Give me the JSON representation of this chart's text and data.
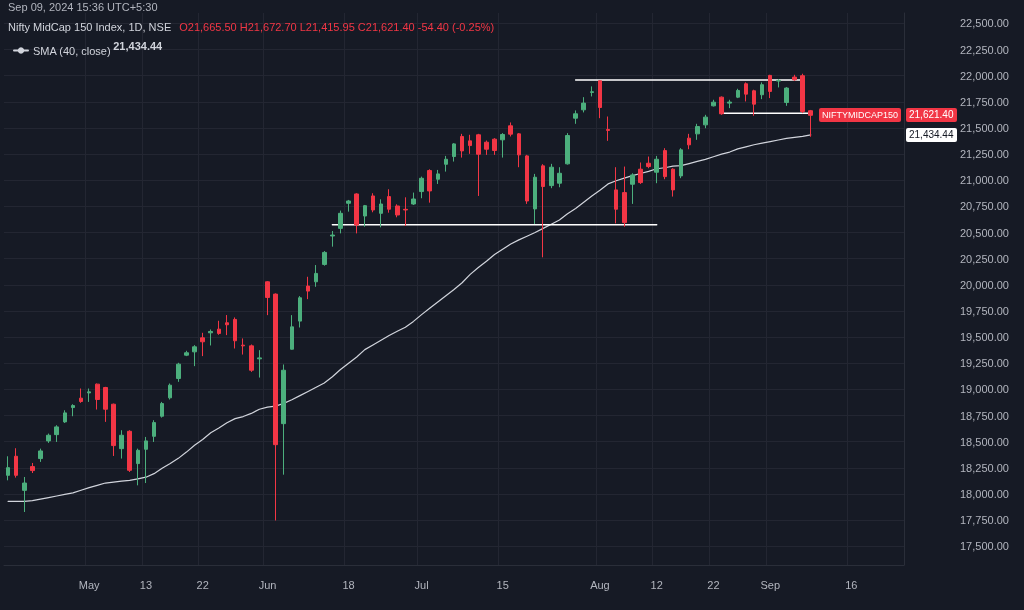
{
  "chart_data": {
    "type": "candlestick",
    "title": "Nifty MidCap 150 Index, 1D, NSE",
    "annotations": [
      "Sep 09, 2024 15:36 UTC+5:30",
      "O21,665.50 H21,672.70 L21,415.95 C21,621.40 -54.40 (-0.25%)",
      "21,434.44",
      "NIFTYMIDCAP150",
      "21,621.40",
      "21,434.44"
    ],
    "categories": [
      null,
      null,
      null,
      null,
      null,
      null,
      null,
      null,
      null,
      null,
      "May",
      null,
      null,
      null,
      null,
      null,
      null,
      "13",
      null,
      null,
      null,
      null,
      null,
      null,
      "22",
      null,
      null,
      null,
      null,
      null,
      null,
      null,
      "Jun",
      null,
      null,
      null,
      null,
      null,
      null,
      null,
      null,
      null,
      "18",
      null,
      null,
      null,
      null,
      null,
      null,
      null,
      null,
      "Jul",
      null,
      null,
      null,
      null,
      null,
      null,
      null,
      null,
      null,
      "15",
      null,
      null,
      null,
      null,
      null,
      null,
      null,
      null,
      null,
      null,
      null,
      "Aug",
      null,
      null,
      null,
      null,
      null,
      null,
      "12",
      null,
      null,
      null,
      null,
      null,
      null,
      "22",
      null,
      null,
      null,
      null,
      null,
      null,
      "Sep",
      null,
      null,
      null,
      null,
      null,
      null,
      null,
      null,
      null,
      "16",
      null,
      null,
      null,
      null,
      null,
      null
    ],
    "ohlc": [
      [
        18178,
        18360,
        18130,
        18251
      ],
      [
        18360,
        18437,
        18156,
        18178
      ],
      [
        18034,
        18162,
        17827,
        18104
      ],
      [
        18261,
        18296,
        18200,
        18223
      ],
      [
        18338,
        18433,
        18306,
        18411
      ],
      [
        18507,
        18577,
        18488,
        18561
      ],
      [
        18567,
        18657,
        18497,
        18641
      ],
      [
        18689,
        18800,
        18679,
        18775
      ],
      [
        18826,
        18858,
        18743,
        18845
      ],
      [
        18916,
        19008,
        18871,
        18884
      ],
      [
        18966,
        19008,
        18880,
        18976
      ],
      [
        19050,
        19056,
        18807,
        18903
      ],
      [
        19018,
        19024,
        18689,
        18810
      ],
      [
        18858,
        18864,
        18363,
        18462
      ],
      [
        18433,
        18609,
        18338,
        18561
      ],
      [
        18599,
        18609,
        18210,
        18226
      ],
      [
        18290,
        18433,
        18082,
        18417
      ],
      [
        18427,
        18545,
        18104,
        18507
      ],
      [
        18551,
        18705,
        18497,
        18682
      ],
      [
        18743,
        18880,
        18730,
        18864
      ],
      [
        18919,
        19056,
        18903,
        19040
      ],
      [
        19104,
        19254,
        19072,
        19241
      ],
      [
        19327,
        19369,
        19318,
        19350
      ],
      [
        19359,
        19423,
        19222,
        19407
      ],
      [
        19493,
        19541,
        19318,
        19455
      ],
      [
        19541,
        19573,
        19420,
        19554
      ],
      [
        19576,
        19656,
        19522,
        19535
      ],
      [
        19637,
        19711,
        19519,
        19618
      ],
      [
        19669,
        19688,
        19391,
        19465
      ],
      [
        19423,
        19487,
        19333,
        19416
      ],
      [
        19416,
        19429,
        19167,
        19183
      ],
      [
        19292,
        19375,
        19113,
        19301
      ],
      [
        20029,
        20035,
        19710,
        19879
      ],
      [
        19911,
        19918,
        17746,
        18471
      ],
      [
        18672,
        19238,
        18184,
        19183
      ],
      [
        19384,
        19710,
        19380,
        19598
      ],
      [
        19653,
        19892,
        19592,
        19876
      ],
      [
        19988,
        20077,
        19863,
        19940
      ],
      [
        20029,
        20189,
        19981,
        20109
      ],
      [
        20195,
        20323,
        20183,
        20310
      ],
      [
        20467,
        20515,
        20365,
        20476
      ],
      [
        20540,
        20710,
        20492,
        20684
      ],
      [
        20780,
        20812,
        20700,
        20802
      ],
      [
        20869,
        20876,
        20492,
        20572
      ],
      [
        20658,
        20764,
        20556,
        20757
      ],
      [
        20850,
        20876,
        20694,
        20716
      ],
      [
        20684,
        20818,
        20550,
        20773
      ],
      [
        20844,
        20914,
        20690,
        20723
      ],
      [
        20754,
        20770,
        20646,
        20668
      ],
      [
        20722,
        20837,
        20563,
        20716
      ],
      [
        20773,
        20882,
        20764,
        20821
      ],
      [
        20892,
        21035,
        20828,
        21019
      ],
      [
        21093,
        21105,
        20786,
        20898
      ],
      [
        21010,
        21099,
        20965,
        21061
      ],
      [
        21153,
        21233,
        21083,
        21201
      ],
      [
        21227,
        21355,
        21179,
        21348
      ],
      [
        21419,
        21444,
        21217,
        21281
      ],
      [
        21377,
        21435,
        21253,
        21332
      ],
      [
        21435,
        21444,
        20850,
        21249
      ],
      [
        21364,
        21380,
        21243,
        21297
      ],
      [
        21393,
        21403,
        21243,
        21285
      ],
      [
        21387,
        21451,
        21217,
        21438
      ],
      [
        21521,
        21553,
        21419,
        21441
      ],
      [
        21444,
        21451,
        21125,
        21243
      ],
      [
        21233,
        21243,
        20774,
        20802
      ],
      [
        20726,
        21061,
        20582,
        21029
      ],
      [
        21138,
        21154,
        20263,
        20940
      ],
      [
        20949,
        21157,
        20924,
        21125
      ],
      [
        20972,
        21125,
        20933,
        21067
      ],
      [
        21157,
        21451,
        21150,
        21428
      ],
      [
        21594,
        21668,
        21540,
        21636
      ],
      [
        21674,
        21795,
        21649,
        21738
      ],
      [
        21840,
        21898,
        21802,
        21847
      ],
      [
        21952,
        21955,
        21594,
        21696
      ],
      [
        21486,
        21610,
        21377,
        21477
      ],
      [
        20908,
        21125,
        20588,
        20723
      ],
      [
        20882,
        21131,
        20556,
        20595
      ],
      [
        20962,
        21067,
        20774,
        21051
      ],
      [
        21106,
        21170,
        20965,
        20978
      ],
      [
        21163,
        21227,
        21115,
        21131
      ],
      [
        21077,
        21233,
        20972,
        21201
      ],
      [
        21284,
        21307,
        21010,
        21035
      ],
      [
        21106,
        21115,
        20844,
        20908
      ],
      [
        21042,
        21307,
        21020,
        21291
      ],
      [
        21403,
        21444,
        21297,
        21339
      ],
      [
        21444,
        21540,
        21387,
        21514
      ],
      [
        21530,
        21626,
        21498,
        21604
      ],
      [
        21712,
        21770,
        21706,
        21747
      ],
      [
        21795,
        21802,
        21626,
        21636
      ],
      [
        21738,
        21770,
        21690,
        21748
      ],
      [
        21795,
        21875,
        21786,
        21859
      ],
      [
        21923,
        21936,
        21754,
        21824
      ],
      [
        21856,
        21866,
        21617,
        21728
      ],
      [
        21818,
        21936,
        21776,
        21914
      ],
      [
        22003,
        22009,
        21786,
        21850
      ],
      [
        21949,
        21968,
        21888,
        21955
      ],
      [
        21744,
        21891,
        21712,
        21882
      ],
      [
        21987,
        22009,
        21952,
        21961
      ],
      [
        22000,
        22019,
        21642,
        21658
      ],
      [
        21665.5,
        21672.7,
        21415.95,
        21621.4
      ],
      null,
      null,
      null,
      null,
      null,
      null,
      null,
      null,
      null,
      null,
      null
    ],
    "colors": [
      "#4caf7d",
      "#f23645",
      "#4caf7d",
      "#f23645",
      "#4caf7d",
      "#4caf7d",
      "#4caf7d",
      "#4caf7d",
      "#4caf7d",
      "#f23645",
      "#4caf7d",
      "#f23645",
      "#f23645",
      "#f23645",
      "#4caf7d",
      "#f23645",
      "#4caf7d",
      "#4caf7d",
      "#4caf7d",
      "#4caf7d",
      "#4caf7d",
      "#4caf7d",
      "#4caf7d",
      "#4caf7d",
      "#f23645",
      "#4caf7d",
      "#f23645",
      "#f23645",
      "#f23645",
      "#f23645",
      "#f23645",
      "#4caf7d",
      "#f23645",
      "#f23645",
      "#4caf7d",
      "#4caf7d",
      "#4caf7d",
      "#f23645",
      "#4caf7d",
      "#4caf7d",
      "#4caf7d",
      "#4caf7d",
      "#4caf7d",
      "#f23645",
      "#4caf7d",
      "#f23645",
      "#4caf7d",
      "#f23645",
      "#f23645",
      "#f23645",
      "#4caf7d",
      "#4caf7d",
      "#f23645",
      "#4caf7d",
      "#4caf7d",
      "#4caf7d",
      "#f23645",
      "#f23645",
      "#f23645",
      "#f23645",
      "#f23645",
      "#4caf7d",
      "#f23645",
      "#f23645",
      "#f23645",
      "#4caf7d",
      "#f23645",
      "#4caf7d",
      "#4caf7d",
      "#4caf7d",
      "#4caf7d",
      "#4caf7d",
      "#4caf7d",
      "#f23645",
      "#f23645",
      "#f23645",
      "#f23645",
      "#4caf7d",
      "#f23645",
      "#f23645",
      "#4caf7d",
      "#f23645",
      "#f23645",
      "#4caf7d",
      "#f23645",
      "#4caf7d",
      "#4caf7d",
      "#4caf7d",
      "#f23645",
      "#4caf7d",
      "#4caf7d",
      "#f23645",
      "#f23645",
      "#4caf7d",
      "#f23645",
      "#4caf7d",
      "#4caf7d",
      "#f23645",
      "#f23645",
      "#f23645",
      null,
      null,
      null,
      null,
      null,
      null,
      null,
      null,
      null,
      null,
      null
    ],
    "series": [
      {
        "name": "SMA (40, close)",
        "type": "line",
        "color": "#d1d4dc",
        "values": [
          17929,
          17929,
          17929,
          17935,
          17950,
          17965,
          17980,
          17995,
          18010,
          18035,
          18060,
          18082,
          18104,
          18113,
          18122,
          18130,
          18143,
          18160,
          18194,
          18245,
          18290,
          18340,
          18400,
          18465,
          18520,
          18585,
          18630,
          18680,
          18720,
          18740,
          18770,
          18810,
          18830,
          18840,
          18866,
          18900,
          18940,
          18980,
          19020,
          19060,
          19120,
          19190,
          19250,
          19310,
          19380,
          19425,
          19470,
          19515,
          19555,
          19595,
          19650,
          19715,
          19775,
          19835,
          19895,
          19955,
          20020,
          20100,
          20165,
          20225,
          20290,
          20340,
          20390,
          20430,
          20465,
          20500,
          20540,
          20580,
          20620,
          20680,
          20730,
          20790,
          20850,
          20905,
          20965,
          20995,
          21020,
          21045,
          21065,
          21085,
          21110,
          21120,
          21135,
          21140,
          21160,
          21180,
          21200,
          21225,
          21250,
          21270,
          21300,
          21320,
          21340,
          21355,
          21370,
          21385,
          21400,
          21410,
          21420,
          21434.44,
          null,
          null,
          null,
          null,
          null,
          null,
          null,
          null,
          null,
          null,
          null
        ]
      },
      {
        "type": "line",
        "color": "#ffffff",
        "values": [
          null,
          null,
          null,
          null,
          null,
          null,
          null,
          null,
          null,
          null,
          null,
          null,
          null,
          null,
          null,
          null,
          null,
          null,
          null,
          null,
          null,
          null,
          null,
          null,
          null,
          null,
          null,
          null,
          null,
          null,
          null,
          null,
          null,
          null,
          null,
          null,
          null,
          null,
          null,
          null,
          20575,
          20575,
          20575,
          20575,
          20575,
          20575,
          20575,
          20575,
          20575,
          20575,
          20575,
          20575,
          20575,
          20575,
          20575,
          20575,
          20575,
          20575,
          20575,
          20575,
          20575,
          20575,
          20575,
          20575,
          20575,
          20575,
          20575,
          20575,
          20575,
          20575,
          20575,
          20575,
          20575,
          20575,
          20575,
          20575,
          20575,
          20575,
          20575,
          20575,
          20575,
          null,
          null,
          null,
          null,
          null,
          null,
          null,
          null,
          null,
          null,
          null,
          null,
          null,
          null,
          null,
          null,
          null,
          null,
          null,
          null,
          null,
          null,
          null,
          null,
          null,
          null,
          null,
          null,
          null,
          null
        ]
      },
      {
        "type": "line",
        "color": "#ffffff",
        "values": [
          null,
          null,
          null,
          null,
          null,
          null,
          null,
          null,
          null,
          null,
          null,
          null,
          null,
          null,
          null,
          null,
          null,
          null,
          null,
          null,
          null,
          null,
          null,
          null,
          null,
          null,
          null,
          null,
          null,
          null,
          null,
          null,
          null,
          null,
          null,
          null,
          null,
          null,
          null,
          null,
          null,
          null,
          null,
          null,
          null,
          null,
          null,
          null,
          null,
          null,
          null,
          null,
          null,
          null,
          null,
          null,
          null,
          null,
          null,
          null,
          null,
          null,
          null,
          null,
          null,
          null,
          null,
          null,
          null,
          null,
          21960,
          21960,
          21960,
          21960,
          21960,
          21960,
          21960,
          21960,
          21960,
          21960,
          21960,
          21960,
          21960,
          21960,
          21960,
          21960,
          21960,
          21960,
          21960,
          21960,
          21960,
          21960,
          21960,
          21960,
          21960,
          21960,
          21960,
          21960,
          21960,
          null,
          null,
          null,
          null,
          null,
          null,
          null,
          null,
          null,
          null,
          null,
          null
        ]
      },
      {
        "type": "line",
        "color": "#ffffff",
        "values": [
          null,
          null,
          null,
          null,
          null,
          null,
          null,
          null,
          null,
          null,
          null,
          null,
          null,
          null,
          null,
          null,
          null,
          null,
          null,
          null,
          null,
          null,
          null,
          null,
          null,
          null,
          null,
          null,
          null,
          null,
          null,
          null,
          null,
          null,
          null,
          null,
          null,
          null,
          null,
          null,
          null,
          null,
          null,
          null,
          null,
          null,
          null,
          null,
          null,
          null,
          null,
          null,
          null,
          null,
          null,
          null,
          null,
          null,
          null,
          null,
          null,
          null,
          null,
          null,
          null,
          null,
          null,
          null,
          null,
          null,
          null,
          null,
          null,
          null,
          null,
          null,
          null,
          null,
          null,
          null,
          null,
          null,
          null,
          null,
          null,
          null,
          null,
          null,
          21640,
          21640,
          21640,
          21640,
          21640,
          21640,
          21640,
          21640,
          21640,
          21640,
          21640,
          21640,
          null,
          null,
          null,
          null,
          null,
          null,
          null,
          null,
          null,
          null,
          null
        ]
      }
    ],
    "ylim": [
      17320,
      22600
    ],
    "yticks": [
      {
        "value": 17500,
        "label": "17,500.00"
      },
      {
        "value": 17750,
        "label": "17,750.00"
      },
      {
        "value": 18000,
        "label": "18,000.00"
      },
      {
        "value": 18250,
        "label": "18,250.00"
      },
      {
        "value": 18500,
        "label": "18,500.00"
      },
      {
        "value": 18750,
        "label": "18,750.00"
      },
      {
        "value": 19000,
        "label": "19,000.00"
      },
      {
        "value": 19250,
        "label": "19,250.00"
      },
      {
        "value": 19500,
        "label": "19,500.00"
      },
      {
        "value": 19750,
        "label": "19,750.00"
      },
      {
        "value": 20000,
        "label": "20,000.00"
      },
      {
        "value": 20250,
        "label": "20,250.00"
      },
      {
        "value": 20500,
        "label": "20,500.00"
      },
      {
        "value": 20750,
        "label": "20,750.00"
      },
      {
        "value": 21000,
        "label": "21,000.00"
      },
      {
        "value": 21250,
        "label": "21,250.00"
      },
      {
        "value": 21500,
        "label": "21,500.00"
      },
      {
        "value": 21750,
        "label": "21,750.00"
      },
      {
        "value": 22000,
        "label": "22,000.00"
      },
      {
        "value": 22250,
        "label": "22,250.00"
      },
      {
        "value": 22500,
        "label": "22,500.00"
      }
    ],
    "grid": true,
    "legend": "top left",
    "marker": "none",
    "line_style": "solid"
  }
}
